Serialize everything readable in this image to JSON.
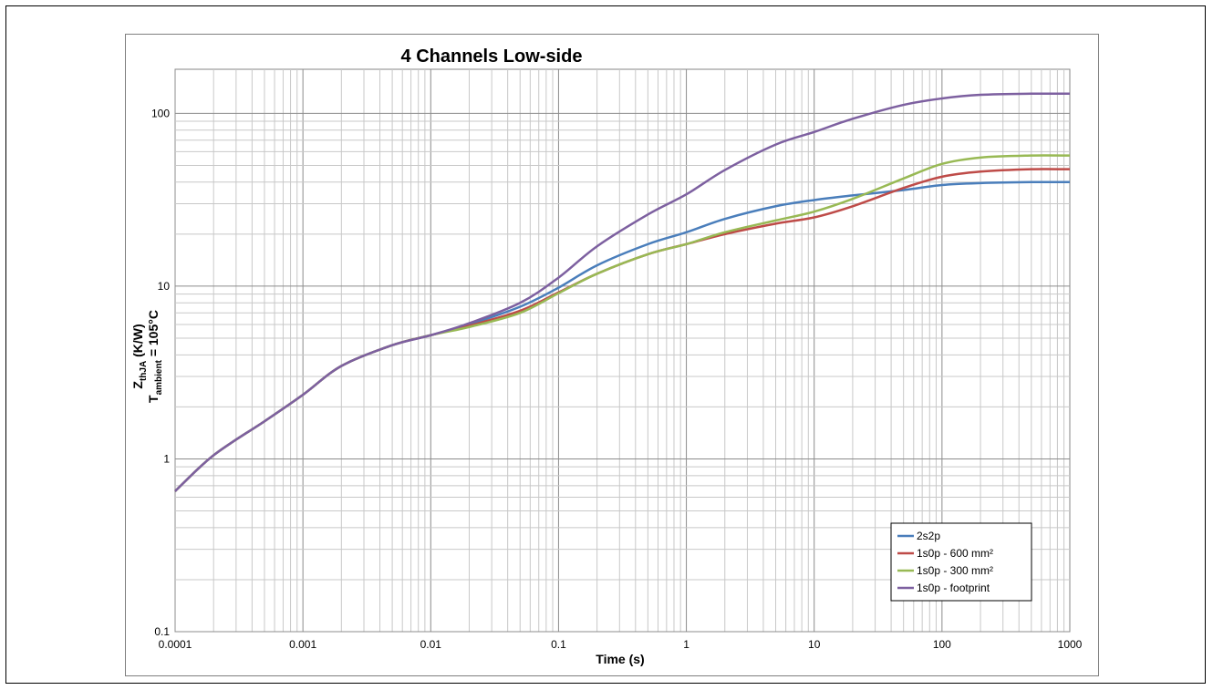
{
  "chart_data": {
    "type": "line",
    "title": "4 Channels Low-side",
    "xlabel": "Time (s)",
    "ylabel": {
      "line1_main": "Z",
      "line1_sub": "thJA",
      "line1_rest": " (K/W)",
      "line2_main": "T",
      "line2_sub": "ambient",
      "line2_rest": " = 105°C"
    },
    "x_scale": "log",
    "y_scale": "log",
    "xlim": [
      0.0001,
      1000
    ],
    "ylim": [
      0.1,
      180
    ],
    "x_ticks": [
      "0.0001",
      "0.001",
      "0.01",
      "0.1",
      "1",
      "10",
      "100",
      "1000"
    ],
    "y_ticks": [
      "0.1",
      "1",
      "10",
      "100"
    ],
    "grid": true,
    "legend_position": "bottom-right",
    "x": [
      0.0001,
      0.0002,
      0.0005,
      0.001,
      0.002,
      0.005,
      0.01,
      0.02,
      0.05,
      0.1,
      0.2,
      0.5,
      1,
      2,
      5,
      10,
      20,
      50,
      100,
      200,
      500,
      1000
    ],
    "series": [
      {
        "name": "2s2p",
        "color": "#4a7ebb",
        "values": [
          0.65,
          1.05,
          1.65,
          2.35,
          3.45,
          4.55,
          5.2,
          6.0,
          7.6,
          9.8,
          13.2,
          17.5,
          20.5,
          24.5,
          29,
          31.5,
          33.5,
          36,
          38.5,
          39.5,
          40,
          40
        ]
      },
      {
        "name": "1s0p - 600 mm²",
        "color": "#be4b48",
        "values": [
          0.65,
          1.05,
          1.65,
          2.35,
          3.45,
          4.55,
          5.2,
          5.9,
          7.2,
          9.2,
          11.8,
          15.3,
          17.5,
          20,
          23,
          25,
          29,
          37,
          43,
          46,
          47.5,
          47.5
        ]
      },
      {
        "name": "1s0p - 300 mm²",
        "color": "#98b954",
        "values": [
          0.65,
          1.05,
          1.65,
          2.35,
          3.45,
          4.55,
          5.2,
          5.8,
          7.0,
          9.1,
          11.8,
          15.3,
          17.5,
          20.5,
          24,
          27,
          32,
          42,
          51,
          55.5,
          57,
          57
        ]
      },
      {
        "name": "1s0p - footprint",
        "color": "#7d60a0",
        "values": [
          0.65,
          1.05,
          1.65,
          2.35,
          3.45,
          4.55,
          5.2,
          6.1,
          8.0,
          11.2,
          17,
          26,
          34,
          47,
          66,
          78,
          93,
          112,
          122,
          128,
          130,
          130
        ]
      }
    ]
  }
}
